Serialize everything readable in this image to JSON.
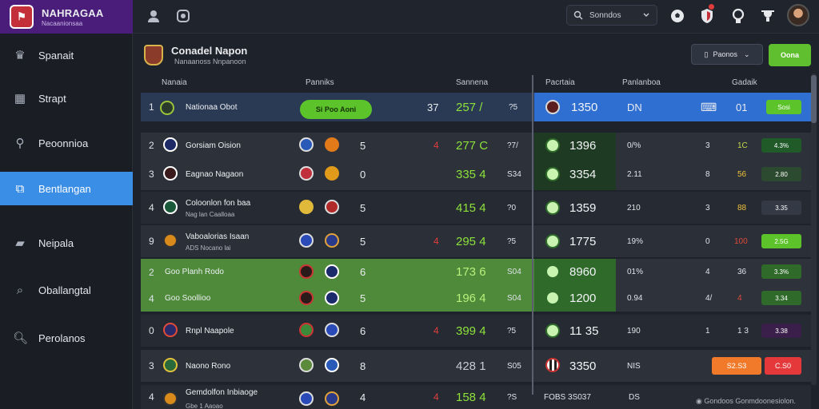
{
  "app": {
    "brand_title": "NAHRAGAA",
    "brand_subtitle": "Nacaanionsaa",
    "logo_glyph": "⚑"
  },
  "header": {
    "search_label": "Sonndos"
  },
  "sidebar": {
    "items": [
      {
        "label": "Spanait",
        "icon": "trophy-icon"
      },
      {
        "label": "Strapt",
        "icon": "stadium-icon"
      },
      {
        "label": "Peoonnioa",
        "icon": "location-icon"
      },
      {
        "label": "Bentlangan",
        "icon": "cards-icon",
        "active": true
      },
      {
        "label": "Neipala",
        "icon": "folder-icon"
      },
      {
        "label": "Oballangtal",
        "icon": "search-icon"
      },
      {
        "label": "Perolanos",
        "icon": "magnifier-icon"
      }
    ]
  },
  "page": {
    "title": "Conadel Napon",
    "subtitle": "Nanaanoss Nnpanoon",
    "dropdown_label": "Paonos",
    "action_label": "Oona"
  },
  "columns": {
    "c1": "Nanaia",
    "c2": "Panniks",
    "c3": "Sannena",
    "c4": "Pacrtaia",
    "c5": "Panlanboa",
    "c6": "Gadaik"
  },
  "rows": [
    {
      "rank": "1",
      "name": "Nationaa Obot",
      "form": "Si Poo Aoni",
      "a": "37",
      "b": "257 /",
      "c": "?5",
      "d": "1350",
      "e": "DN",
      "f": "01",
      "g": "Sosi"
    },
    {
      "rank": "2",
      "name": "Gorsiam Oision",
      "n": "5",
      "r": "4",
      "b": "277 C",
      "c": "?7/",
      "d": "1396",
      "e": "0/%",
      "f": "3",
      "g1": "1C",
      "g": "4.3%"
    },
    {
      "rank": "3",
      "name": "Eagnao Nagaon",
      "n": "0",
      "b": "335 4",
      "c": "S34",
      "d": "3354",
      "e": "2.11",
      "f": "8",
      "g1": "56",
      "g": "2.80"
    },
    {
      "rank": "4",
      "name": "Coloonlon fon baa",
      "sub": "Nag lan Caalloaa",
      "n": "5",
      "b": "415 4",
      "c": "?0",
      "d": "1359",
      "e": "210",
      "f": "3",
      "g1": "88",
      "g": "3.35"
    },
    {
      "rank": "9",
      "name": "Vaboalorias Isaan",
      "sub": "ADS Nocano lai",
      "n": "5",
      "r": "4",
      "b": "295 4",
      "c": "?5",
      "d": "1775",
      "e": "19%",
      "f": "0",
      "g1": "100",
      "g": "2.5G"
    },
    {
      "rank": "2",
      "name": "Goo Planh Rodo",
      "n": "6",
      "b": "173 6",
      "c": "S04",
      "d": "8960",
      "e": "01%",
      "f": "4",
      "g1": "36",
      "g": "3.3%"
    },
    {
      "rank": "4",
      "name": "Goo Soollioo",
      "n": "5",
      "b": "196 4",
      "c": "S04",
      "d": "1200",
      "e": "0.94",
      "f": "4/",
      "g1": "4",
      "g": "3.34"
    },
    {
      "rank": "0",
      "name": "Rnpl Naapole",
      "n": "6",
      "r": "4",
      "b": "399 4",
      "c": "?5",
      "d": "11 35",
      "e": "190",
      "f": "1",
      "g1": "1 3",
      "g": "3.38"
    },
    {
      "rank": "3",
      "name": "Naono Rono",
      "n": "8",
      "b": "428 1",
      "c": "S05",
      "d": "3350",
      "e": "NIS",
      "p1": "S2.S3",
      "p2": "C.S0"
    },
    {
      "rank": "4",
      "name": "Gemdolfon Inbiaoge",
      "sub": "Gbe 1 Aaoao",
      "n": "4",
      "r": "4",
      "b": "158 4",
      "c": "?S",
      "d": "FOBS 3S037",
      "e": "DS"
    }
  ],
  "footer": {
    "note": "Gondoos Gonmdoonesiolon."
  },
  "colors": {
    "accent": "#3a8ee6",
    "green": "#5cc32b",
    "orange": "#f07a2a",
    "red": "#e5383b",
    "purple": "#4a1d7a"
  }
}
